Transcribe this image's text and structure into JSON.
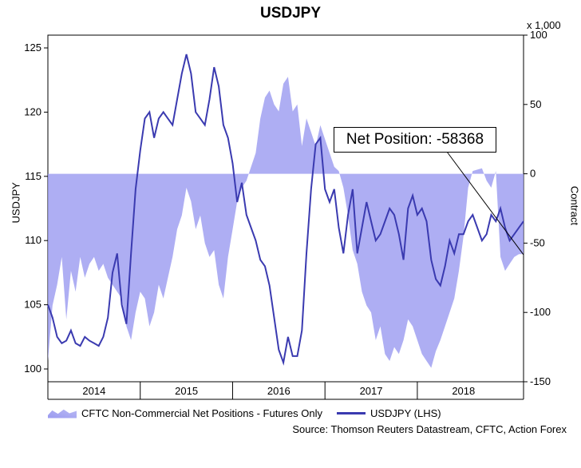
{
  "chart_data": {
    "type": "line",
    "title": "USDJPY",
    "left_axis": {
      "label": "USDJPY",
      "ylim": [
        100,
        125
      ],
      "ticks": [
        100,
        105,
        110,
        115,
        120,
        125
      ]
    },
    "right_axis": {
      "label": "Contract",
      "unit": "x 1,000",
      "ylim": [
        -150,
        100
      ],
      "ticks": [
        -150,
        -100,
        -50,
        0,
        50,
        100
      ]
    },
    "x_axis": {
      "xlim": [
        2013.5,
        2018.65
      ],
      "tick_labels": [
        "2014",
        "2015",
        "2016",
        "2017",
        "2018"
      ],
      "tick_positions": [
        2014,
        2015,
        2016,
        2017,
        2018
      ],
      "boundaries": [
        2013.5,
        2014.5,
        2015.5,
        2016.5,
        2017.5,
        2018.65
      ]
    },
    "series": [
      {
        "name": "CFTC Non-Commercial Net Positions - Futures Only",
        "kind": "area",
        "axis": "right",
        "color": "#9a9af0",
        "x": [
          2013.5,
          2013.55,
          2013.6,
          2013.65,
          2013.7,
          2013.75,
          2013.8,
          2013.85,
          2013.9,
          2013.95,
          2014.0,
          2014.05,
          2014.1,
          2014.15,
          2014.2,
          2014.25,
          2014.3,
          2014.35,
          2014.4,
          2014.45,
          2014.5,
          2014.55,
          2014.6,
          2014.65,
          2014.7,
          2014.75,
          2014.8,
          2014.85,
          2014.9,
          2014.95,
          2015.0,
          2015.05,
          2015.1,
          2015.15,
          2015.2,
          2015.25,
          2015.3,
          2015.35,
          2015.4,
          2015.45,
          2015.5,
          2015.55,
          2015.6,
          2015.65,
          2015.7,
          2015.75,
          2015.8,
          2015.85,
          2015.9,
          2015.95,
          2016.0,
          2016.05,
          2016.1,
          2016.15,
          2016.2,
          2016.25,
          2016.3,
          2016.35,
          2016.4,
          2016.45,
          2016.5,
          2016.55,
          2016.6,
          2016.65,
          2016.7,
          2016.75,
          2016.8,
          2016.85,
          2016.9,
          2016.95,
          2017.0,
          2017.05,
          2017.1,
          2017.15,
          2017.2,
          2017.25,
          2017.3,
          2017.35,
          2017.4,
          2017.45,
          2017.5,
          2017.55,
          2017.6,
          2017.65,
          2017.7,
          2017.75,
          2017.8,
          2017.85,
          2017.9,
          2017.95,
          2018.0,
          2018.05,
          2018.1,
          2018.15,
          2018.2,
          2018.25,
          2018.3,
          2018.35,
          2018.4,
          2018.45,
          2018.5,
          2018.55,
          2018.6,
          2018.65
        ],
        "values": [
          -135,
          -95,
          -80,
          -60,
          -105,
          -70,
          -85,
          -60,
          -75,
          -65,
          -60,
          -70,
          -65,
          -75,
          -80,
          -85,
          -90,
          -110,
          -120,
          -100,
          -85,
          -90,
          -110,
          -100,
          -80,
          -90,
          -75,
          -60,
          -40,
          -30,
          -10,
          -20,
          -40,
          -30,
          -50,
          -60,
          -55,
          -80,
          -90,
          -60,
          -40,
          -20,
          -10,
          -5,
          5,
          15,
          40,
          55,
          60,
          50,
          45,
          65,
          70,
          45,
          50,
          20,
          40,
          30,
          20,
          35,
          25,
          15,
          5,
          2,
          -10,
          -30,
          -55,
          -65,
          -85,
          -95,
          -100,
          -120,
          -110,
          -130,
          -135,
          -125,
          -130,
          -120,
          -105,
          -110,
          -120,
          -130,
          -135,
          -140,
          -128,
          -120,
          -110,
          -100,
          -90,
          -70,
          -45,
          -10,
          2,
          3,
          4,
          -5,
          -10,
          2,
          -60,
          -70,
          -65,
          -60,
          -58,
          -58
        ]
      },
      {
        "name": "USDJPY (LHS)",
        "kind": "line",
        "axis": "left",
        "color": "#3a3ab0",
        "x": [
          2013.5,
          2013.55,
          2013.6,
          2013.65,
          2013.7,
          2013.75,
          2013.8,
          2013.85,
          2013.9,
          2013.95,
          2014.0,
          2014.05,
          2014.1,
          2014.15,
          2014.2,
          2014.25,
          2014.3,
          2014.35,
          2014.4,
          2014.45,
          2014.5,
          2014.55,
          2014.6,
          2014.65,
          2014.7,
          2014.75,
          2014.8,
          2014.85,
          2014.9,
          2014.95,
          2015.0,
          2015.05,
          2015.1,
          2015.15,
          2015.2,
          2015.25,
          2015.3,
          2015.35,
          2015.4,
          2015.45,
          2015.5,
          2015.55,
          2015.6,
          2015.65,
          2015.7,
          2015.75,
          2015.8,
          2015.85,
          2015.9,
          2015.95,
          2016.0,
          2016.05,
          2016.1,
          2016.15,
          2016.2,
          2016.25,
          2016.3,
          2016.35,
          2016.4,
          2016.45,
          2016.5,
          2016.55,
          2016.6,
          2016.65,
          2016.7,
          2016.75,
          2016.8,
          2016.85,
          2016.9,
          2016.95,
          2017.0,
          2017.05,
          2017.1,
          2017.15,
          2017.2,
          2017.25,
          2017.3,
          2017.35,
          2017.4,
          2017.45,
          2017.5,
          2017.55,
          2017.6,
          2017.65,
          2017.7,
          2017.75,
          2017.8,
          2017.85,
          2017.9,
          2017.95,
          2018.0,
          2018.05,
          2018.1,
          2018.15,
          2018.2,
          2018.25,
          2018.3,
          2018.35,
          2018.4,
          2018.45,
          2018.5,
          2018.55,
          2018.6,
          2018.65
        ],
        "values": [
          105.0,
          104.0,
          102.5,
          102.0,
          102.2,
          103.0,
          102.0,
          101.8,
          102.5,
          102.2,
          102.0,
          101.8,
          102.5,
          104.0,
          107.5,
          109.0,
          105.0,
          103.5,
          109.0,
          114.0,
          117.0,
          119.5,
          120.0,
          118.0,
          119.5,
          120.0,
          119.5,
          119.0,
          121.0,
          123.0,
          124.5,
          123.0,
          120.0,
          119.5,
          119.0,
          121.0,
          123.5,
          122.0,
          119.0,
          118.0,
          116.0,
          113.0,
          114.5,
          112.0,
          111.0,
          110.0,
          108.5,
          108.0,
          106.5,
          104.0,
          101.5,
          100.5,
          102.5,
          101.0,
          101.0,
          103.0,
          109.0,
          114.0,
          117.5,
          118.0,
          114.0,
          113.0,
          114.0,
          111.0,
          109.0,
          112.0,
          114.0,
          109.0,
          111.0,
          113.0,
          111.5,
          110.0,
          110.5,
          111.5,
          112.5,
          112.0,
          110.5,
          108.5,
          112.5,
          113.5,
          112.0,
          112.5,
          111.5,
          108.5,
          107.0,
          106.5,
          108.0,
          110.0,
          109.0,
          110.5,
          110.5,
          111.5,
          112.0,
          111.0,
          110.0,
          110.5,
          112.0,
          111.5,
          112.5,
          111.0,
          110.0,
          110.5,
          111.0,
          111.5
        ]
      }
    ],
    "annotation": {
      "text": "Net Position: -58368",
      "value": -58368
    }
  },
  "legend": {
    "area_label": "CFTC Non-Commercial Net Positions - Futures Only",
    "line_label": "USDJPY (LHS)"
  },
  "source": "Source: Thomson Reuters Datastream, CFTC, Action Forex"
}
